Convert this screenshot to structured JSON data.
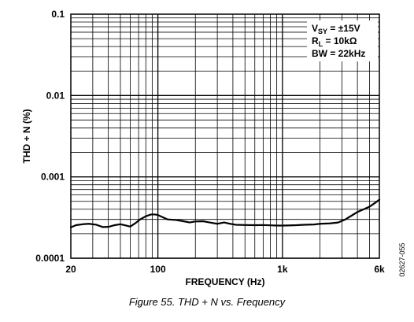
{
  "chart_data": {
    "type": "line",
    "title": "",
    "xlabel": "FREQUENCY (Hz)",
    "ylabel": "THD + N (%)",
    "x_scale": "log",
    "y_scale": "log",
    "xlim": [
      20,
      6000
    ],
    "ylim": [
      0.0001,
      0.1
    ],
    "x_ticks": [
      {
        "value": 20,
        "label": "20"
      },
      {
        "value": 100,
        "label": "100"
      },
      {
        "value": 1000,
        "label": "1k"
      },
      {
        "value": 6000,
        "label": "6k"
      }
    ],
    "y_ticks": [
      {
        "value": 0.1,
        "label": "0.1"
      },
      {
        "value": 0.01,
        "label": "0.01"
      },
      {
        "value": 0.001,
        "label": "0.001"
      },
      {
        "value": 0.0001,
        "label": "0.0001"
      }
    ],
    "grid": true,
    "legend_position": "top-right",
    "legend": [
      {
        "main": "V",
        "sub": "SY",
        "rest": " = ±15V"
      },
      {
        "main": "R",
        "sub": "L",
        "rest": " = 10kΩ"
      },
      {
        "main": "BW = 22kHz",
        "sub": "",
        "rest": ""
      }
    ],
    "series": [
      {
        "color": "#000000",
        "x": [
          20,
          22,
          25,
          28,
          32,
          36,
          40,
          45,
          50,
          55,
          60,
          66,
          72,
          80,
          88,
          95,
          100,
          110,
          120,
          140,
          160,
          180,
          200,
          230,
          260,
          300,
          340,
          380,
          420,
          500,
          600,
          700,
          800,
          900,
          1000,
          1100,
          1300,
          1500,
          1800,
          2000,
          2400,
          2800,
          3200,
          3600,
          4000,
          4500,
          5000,
          5500,
          6000
        ],
        "y": [
          0.00024,
          0.000255,
          0.000262,
          0.000265,
          0.000258,
          0.000242,
          0.000243,
          0.000255,
          0.000262,
          0.000253,
          0.000245,
          0.00027,
          0.0003,
          0.000328,
          0.000345,
          0.000345,
          0.00034,
          0.000318,
          0.0003,
          0.000295,
          0.000285,
          0.000275,
          0.000283,
          0.000285,
          0.000275,
          0.000265,
          0.000275,
          0.000265,
          0.000258,
          0.000256,
          0.000255,
          0.000256,
          0.000254,
          0.000252,
          0.000252,
          0.000253,
          0.000255,
          0.000258,
          0.00026,
          0.000265,
          0.000268,
          0.000275,
          0.0003,
          0.000335,
          0.00037,
          0.0004,
          0.00043,
          0.000475,
          0.000525
        ]
      }
    ]
  },
  "caption": "Figure 55. THD + N vs. Frequency",
  "figure_id": "02627-055"
}
